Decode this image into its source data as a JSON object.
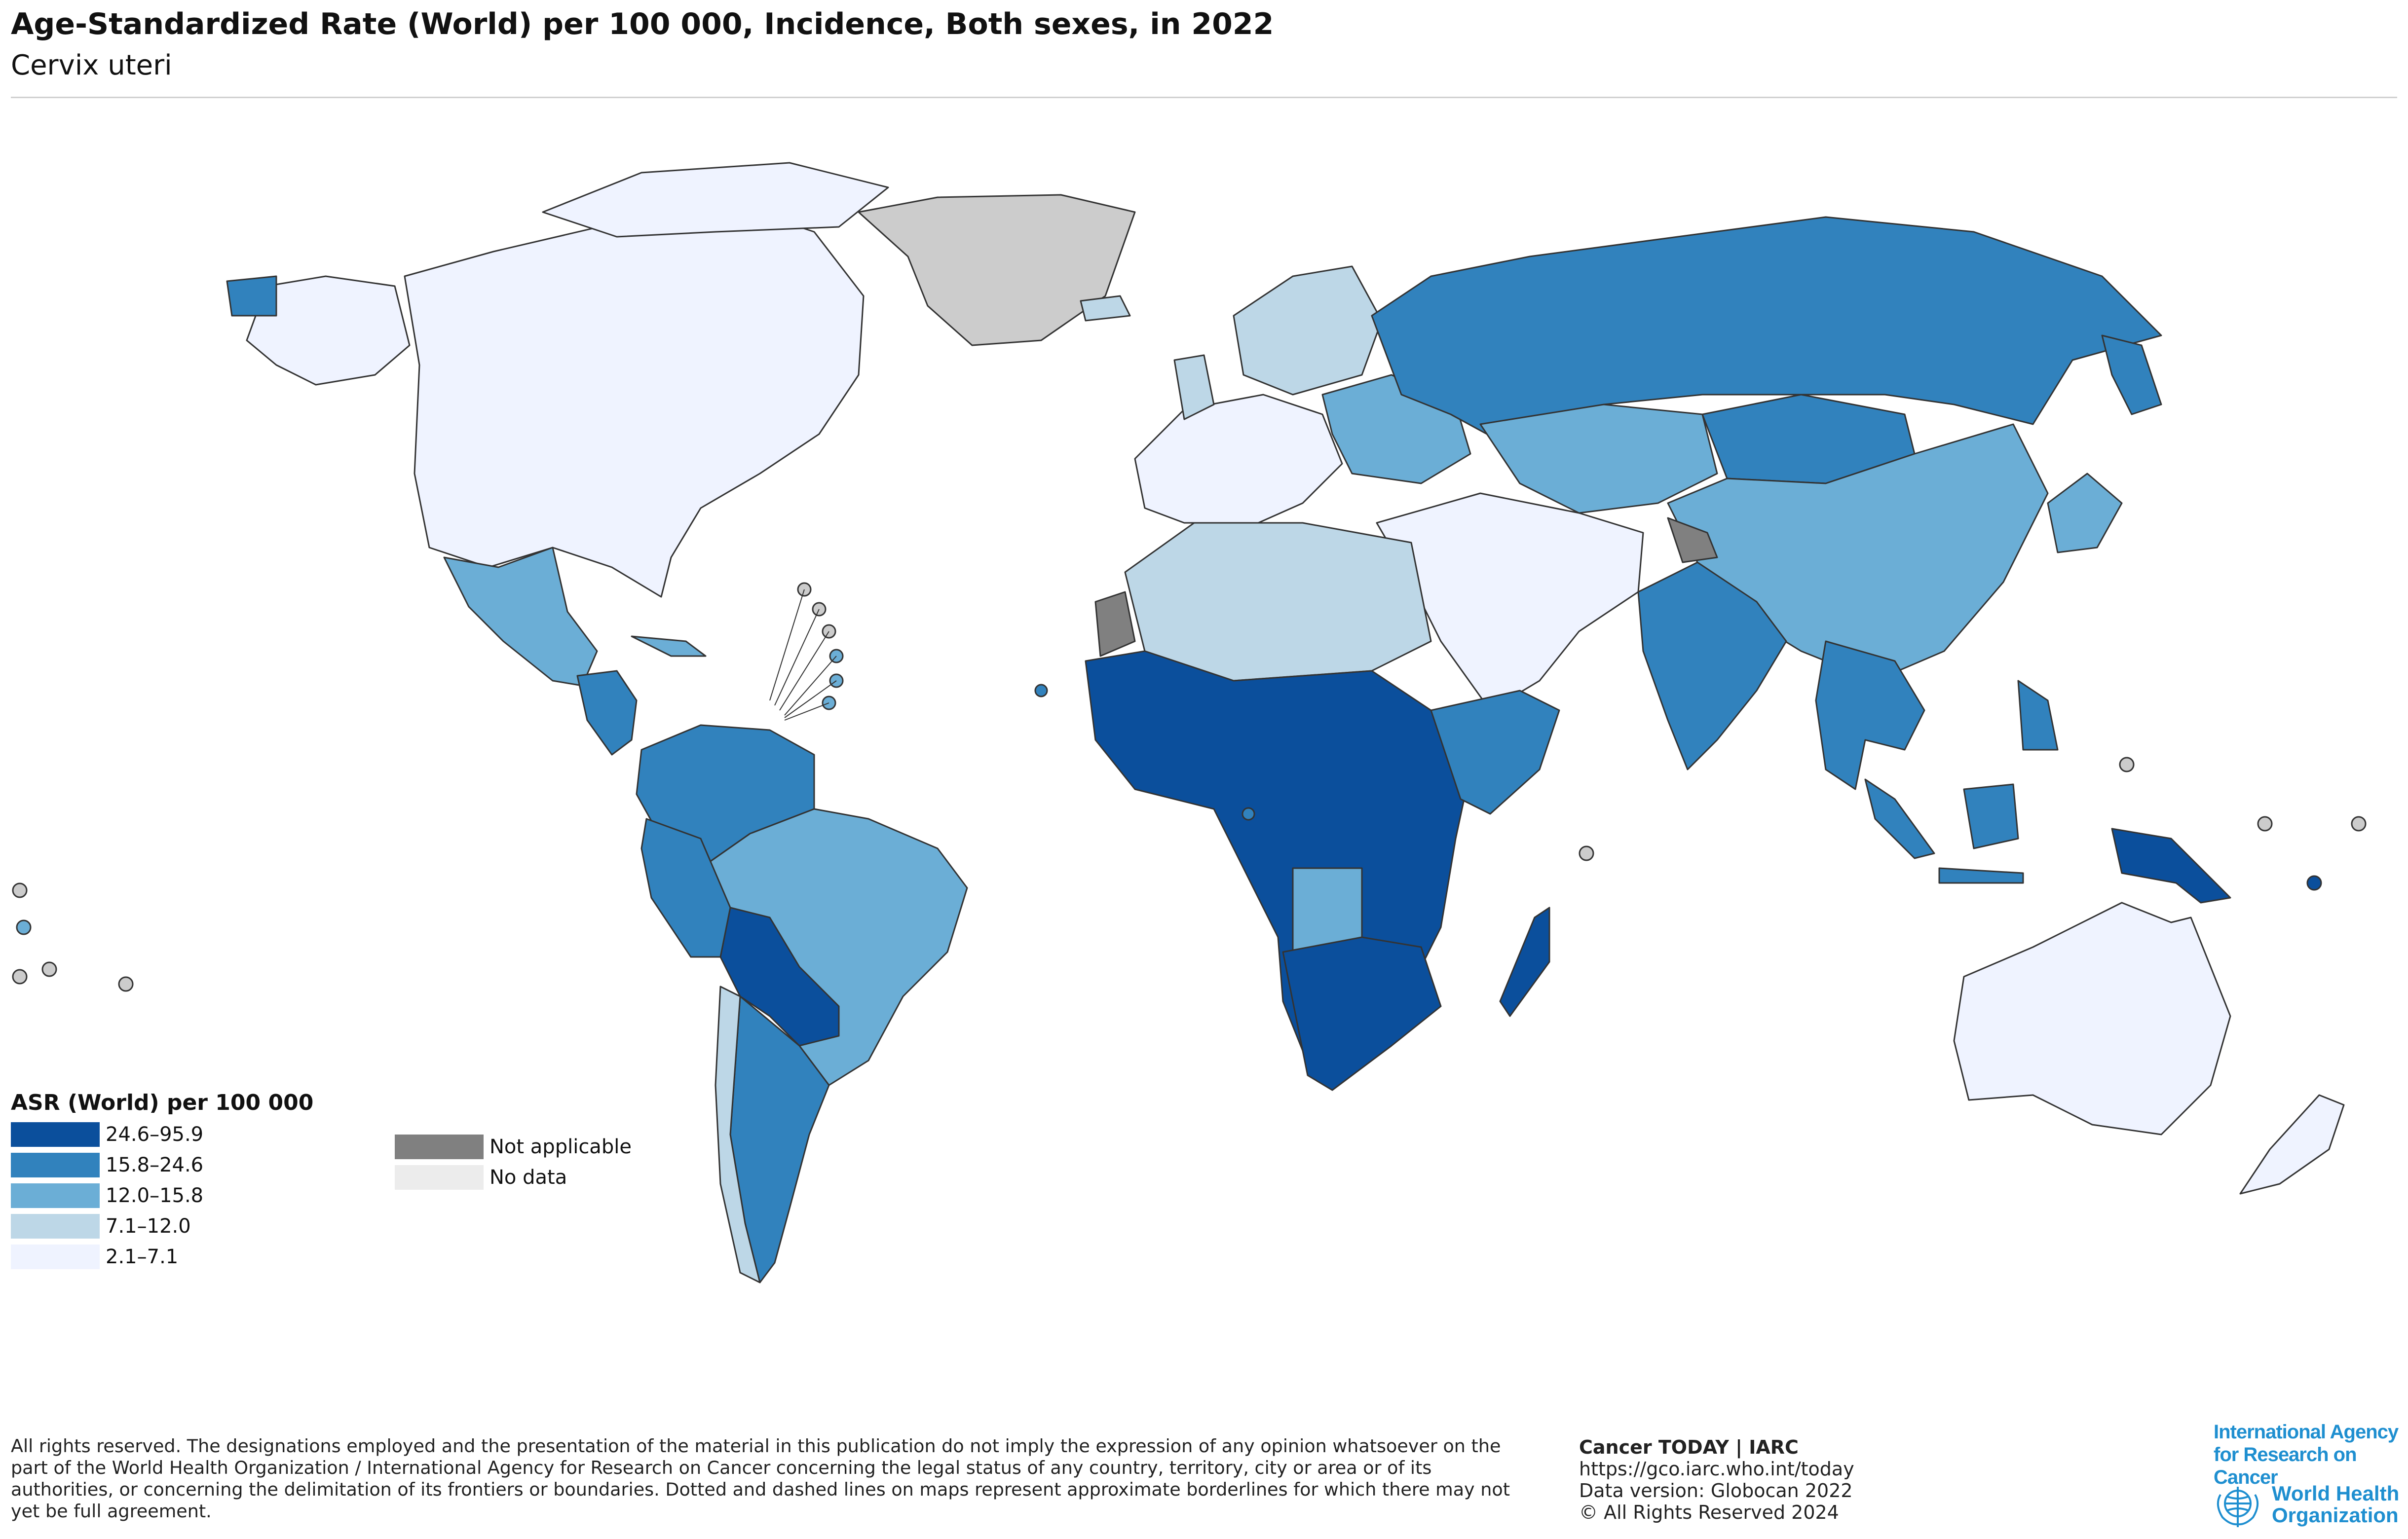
{
  "title": "Age-Standardized Rate (World) per 100 000, Incidence, Both sexes, in 2022",
  "subtitle": "Cervix uteri",
  "legend": {
    "title": "ASR (World) per 100 000",
    "classes": [
      {
        "label": "24.6–95.9",
        "color": "#0b4f9c"
      },
      {
        "label": "15.8–24.6",
        "color": "#3182bd"
      },
      {
        "label": "12.0–15.8",
        "color": "#6baed6"
      },
      {
        "label": "7.1–12.0",
        "color": "#bdd7e7"
      },
      {
        "label": "2.1–7.1",
        "color": "#eff3ff"
      }
    ],
    "special": [
      {
        "label": "Not applicable",
        "color": "#808080"
      },
      {
        "label": "No data",
        "color": "#ececec"
      }
    ]
  },
  "disclaimer": "All rights reserved. The designations employed and the presentation of the material in this publication do not imply the expression of any opinion whatsoever on the part of the World Health Organization / International Agency for Research on Cancer concerning the legal status of any country, territory, city or area or of its authorities, or concerning the delimitation of its frontiers or boundaries. Dotted and dashed lines on maps represent approximate borderlines for which there may not yet be full agreement.",
  "credits": {
    "source": "Cancer TODAY | IARC",
    "url": "https://gco.iarc.who.int/today",
    "version": "Data version: Globocan 2022",
    "copyright": "© All Rights Reserved 2024"
  },
  "logos": {
    "iarc_line1": "International Agency",
    "iarc_line2": "for Research on Cancer",
    "who_line1": "World Health",
    "who_line2": "Organization"
  },
  "map_regions": [
    {
      "name": "North America",
      "class": "2.1–7.1",
      "color": "#eff3ff"
    },
    {
      "name": "Greenland",
      "class": "No data",
      "color": "#cccccc"
    },
    {
      "name": "Mexico",
      "class": "12.0–15.8",
      "color": "#6baed6"
    },
    {
      "name": "Central America",
      "class": "15.8–24.6",
      "color": "#3182bd"
    },
    {
      "name": "Northern South America",
      "class": "15.8–24.6",
      "color": "#3182bd"
    },
    {
      "name": "Brazil",
      "class": "12.0–15.8",
      "color": "#6baed6"
    },
    {
      "name": "Bolivia / Paraguay",
      "class": "24.6–95.9",
      "color": "#0b4f9c"
    },
    {
      "name": "Argentina",
      "class": "15.8–24.6",
      "color": "#3182bd"
    },
    {
      "name": "Chile",
      "class": "7.1–12.0",
      "color": "#bdd7e7"
    },
    {
      "name": "Western Europe",
      "class": "2.1–7.1",
      "color": "#eff3ff"
    },
    {
      "name": "Northern Europe",
      "class": "7.1–12.0",
      "color": "#bdd7e7"
    },
    {
      "name": "Eastern Europe",
      "class": "12.0–15.8",
      "color": "#6baed6"
    },
    {
      "name": "Russia",
      "class": "15.8–24.6",
      "color": "#3182bd"
    },
    {
      "name": "Kazakhstan / Central Asia",
      "class": "12.0–15.8",
      "color": "#6baed6"
    },
    {
      "name": "Mongolia",
      "class": "15.8–24.6",
      "color": "#3182bd"
    },
    {
      "name": "China",
      "class": "12.0–15.8",
      "color": "#6baed6"
    },
    {
      "name": "Japan",
      "class": "12.0–15.8",
      "color": "#6baed6"
    },
    {
      "name": "India",
      "class": "15.8–24.6",
      "color": "#3182bd"
    },
    {
      "name": "Middle East",
      "class": "2.1–7.1",
      "color": "#eff3ff"
    },
    {
      "name": "North Africa",
      "class": "7.1–12.0",
      "color": "#bdd7e7"
    },
    {
      "name": "Western Sahara",
      "class": "Not applicable",
      "color": "#808080"
    },
    {
      "name": "Sub-Saharan Africa",
      "class": "24.6–95.9",
      "color": "#0b4f9c"
    },
    {
      "name": "East Africa",
      "class": "15.8–24.6",
      "color": "#3182bd"
    },
    {
      "name": "Angola",
      "class": "12.0–15.8",
      "color": "#6baed6"
    },
    {
      "name": "Madagascar",
      "class": "24.6–95.9",
      "color": "#0b4f9c"
    },
    {
      "name": "Southeast Asia",
      "class": "15.8–24.6",
      "color": "#3182bd"
    },
    {
      "name": "Indonesia",
      "class": "15.8–24.6",
      "color": "#3182bd"
    },
    {
      "name": "Papua New Guinea",
      "class": "24.6–95.9",
      "color": "#0b4f9c"
    },
    {
      "name": "Australia",
      "class": "2.1–7.1",
      "color": "#eff3ff"
    },
    {
      "name": "New Zealand",
      "class": "2.1–7.1",
      "color": "#eff3ff"
    }
  ]
}
